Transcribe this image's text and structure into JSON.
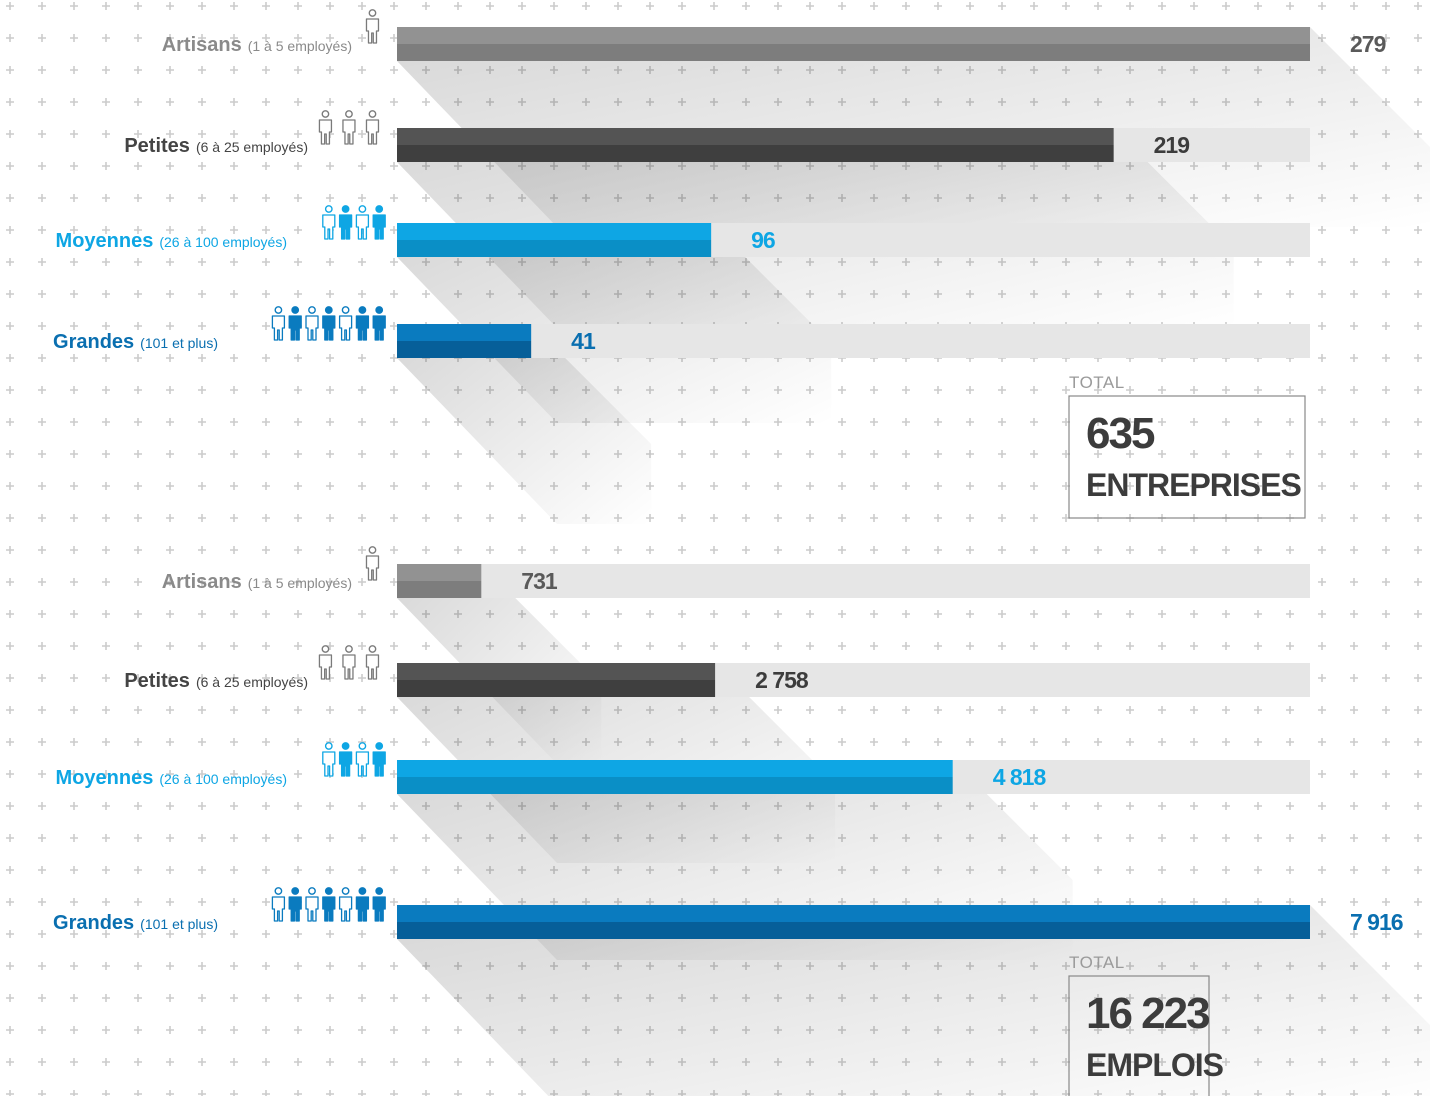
{
  "colors": {
    "track": "#e6e6e6",
    "plus": "#cccccc",
    "box_border": "#888888",
    "artisans": [
      "#929292",
      "#7d7d7d"
    ],
    "petites": [
      "#545454",
      "#3f3f3f"
    ],
    "moyennes": [
      "#0ea6e4",
      "#0a8fc6"
    ],
    "grandes": [
      "#0a7bbf",
      "#065f99"
    ],
    "label_gray_bold": "#8a8a8a",
    "label_dark_bold": "#444444",
    "label_blue_light": "#0ea6e4",
    "label_blue_dark": "#0a6fb0"
  },
  "chart_data": [
    {
      "type": "bar",
      "orientation": "horizontal",
      "categories": [
        "Artisans",
        "Petites",
        "Moyennes",
        "Grandes"
      ],
      "category_notes": [
        "(1 à 5 employés)",
        "(6 à 25 employés)",
        "(26 à 100 employés)",
        "(101 et plus)"
      ],
      "values": [
        279,
        219,
        96,
        41
      ],
      "value_labels": [
        "279",
        "219",
        "96",
        "41"
      ],
      "icons": [
        "person-icon",
        "group-3-icon",
        "group-9-icon",
        "group-20-icon"
      ],
      "xlim": [
        0,
        279
      ],
      "total_label": "TOTAL",
      "total_value": "635",
      "total_unit": "ENTREPRISES"
    },
    {
      "type": "bar",
      "orientation": "horizontal",
      "categories": [
        "Artisans",
        "Petites",
        "Moyennes",
        "Grandes"
      ],
      "category_notes": [
        "(1 à 5 employés)",
        "(6 à 25 employés)",
        "(26 à 100 employés)",
        "(101 et plus)"
      ],
      "values": [
        731,
        2758,
        4818,
        7916
      ],
      "value_labels": [
        "731",
        "2 758",
        "4 818",
        "7 916"
      ],
      "icons": [
        "person-icon",
        "group-3-icon",
        "group-9-icon",
        "group-20-icon"
      ],
      "xlim": [
        0,
        7916
      ],
      "total_label": "TOTAL",
      "total_value": "16 223",
      "total_unit": "EMPLOIS"
    }
  ]
}
